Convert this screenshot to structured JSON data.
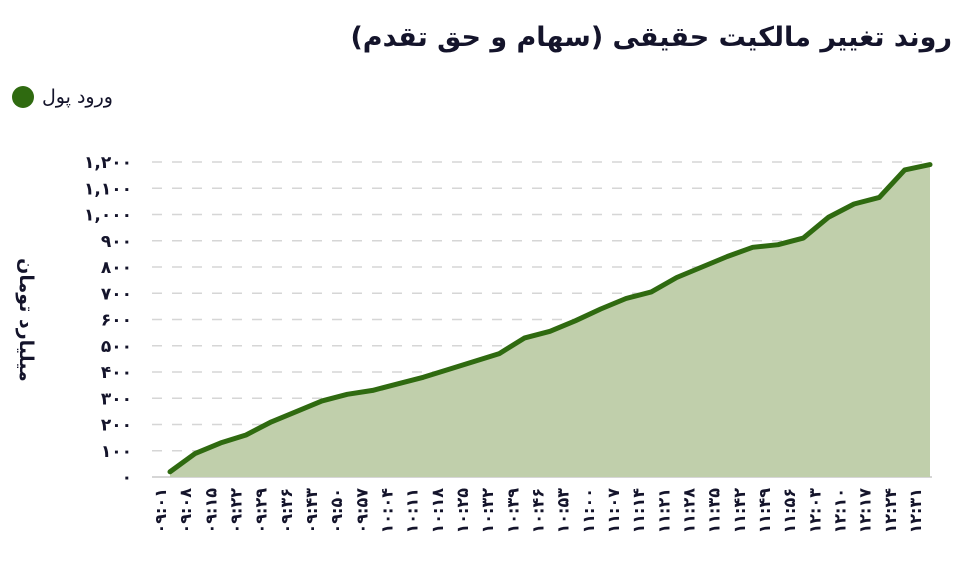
{
  "title": "روند تغییر مالکیت حقیقی (سهام و حق تقدم)",
  "legend": {
    "label": "ورود پول",
    "color": "#2f6a10"
  },
  "colors": {
    "line": "#2f6a10",
    "fill": "#c0cfab",
    "grid": "#d6d6d6",
    "text": "#14142b"
  },
  "chart_data": {
    "type": "area",
    "title": "روند تغییر مالکیت حقیقی (سهام و حق تقدم)",
    "xlabel": "",
    "ylabel": "میلیارد تومان",
    "ylim": [
      0,
      1200
    ],
    "grid": true,
    "legend_position": "top-left",
    "yticks": [
      "۰",
      "۱۰۰",
      "۲۰۰",
      "۳۰۰",
      "۴۰۰",
      "۵۰۰",
      "۶۰۰",
      "۷۰۰",
      "۸۰۰",
      "۹۰۰",
      "۱,۰۰۰",
      "۱,۱۰۰",
      "۱,۲۰۰"
    ],
    "categories": [
      "۰۹:۰۱",
      "۰۹:۰۸",
      "۰۹:۱۵",
      "۰۹:۲۲",
      "۰۹:۲۹",
      "۰۹:۳۶",
      "۰۹:۴۳",
      "۰۹:۵۰",
      "۰۹:۵۷",
      "۱۰:۰۴",
      "۱۰:۱۱",
      "۱۰:۱۸",
      "۱۰:۲۵",
      "۱۰:۳۲",
      "۱۰:۳۹",
      "۱۰:۴۶",
      "۱۰:۵۳",
      "۱۱:۰۰",
      "۱۱:۰۷",
      "۱۱:۱۴",
      "۱۱:۲۱",
      "۱۱:۲۸",
      "۱۱:۳۵",
      "۱۱:۴۲",
      "۱۱:۴۹",
      "۱۱:۵۶",
      "۱۲:۰۳",
      "۱۲:۱۰",
      "۱۲:۱۷",
      "۱۲:۲۴",
      "۱۲:۳۱"
    ],
    "series": [
      {
        "name": "ورود پول",
        "values": [
          20,
          90,
          130,
          160,
          210,
          250,
          290,
          315,
          330,
          355,
          380,
          410,
          440,
          470,
          530,
          555,
          595,
          640,
          680,
          705,
          760,
          800,
          840,
          875,
          885,
          910,
          990,
          1040,
          1065,
          1170,
          1190
        ]
      }
    ]
  }
}
